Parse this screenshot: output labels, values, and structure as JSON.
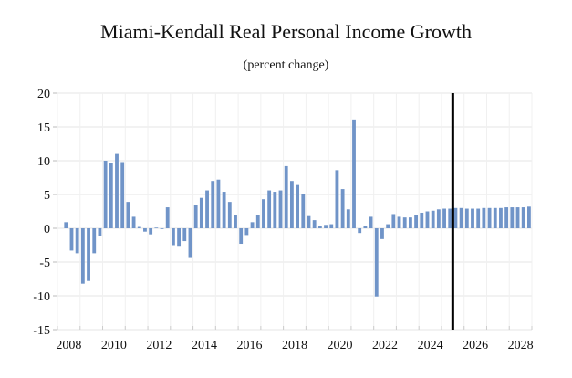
{
  "chart_data": {
    "type": "bar",
    "title": "Miami-Kendall Real Personal Income Growth",
    "subtitle": "(percent change)",
    "xlabel": "",
    "ylabel": "",
    "frequency": "quarterly",
    "start_period": "2008Q2",
    "end_period": "2028Q4",
    "ylim": [
      -15,
      20
    ],
    "yticks": [
      20,
      15,
      10,
      5,
      0,
      -5,
      -10,
      -15
    ],
    "xticks": [
      "2008",
      "2010",
      "2012",
      "2014",
      "2016",
      "2018",
      "2020",
      "2022",
      "2024",
      "2026",
      "2028"
    ],
    "xlim_years": [
      2008,
      2029
    ],
    "grid": true,
    "forecast_marker_year": 2025.5,
    "bar_color": "#7094c8",
    "marker_color": "#000000",
    "values": [
      0.9,
      -3.3,
      -3.7,
      -8.2,
      -7.8,
      -3.7,
      -1.1,
      10.0,
      9.7,
      11.0,
      9.8,
      3.9,
      1.7,
      0.2,
      -0.5,
      -0.9,
      0.1,
      -0.1,
      3.1,
      -2.5,
      -2.6,
      -1.9,
      -4.4,
      3.5,
      4.5,
      5.6,
      7.0,
      7.2,
      5.4,
      3.9,
      2.0,
      -2.3,
      -1.0,
      0.9,
      2.0,
      4.3,
      5.6,
      5.4,
      5.6,
      9.2,
      7.0,
      6.4,
      5.0,
      1.8,
      1.2,
      0.4,
      0.5,
      0.6,
      8.6,
      5.8,
      2.8,
      16.1,
      -0.7,
      0.4,
      1.7,
      -10.1,
      -1.6,
      0.6,
      2.1,
      1.7,
      1.6,
      1.6,
      1.9,
      2.3,
      2.5,
      2.6,
      2.8,
      2.9,
      2.9,
      3.0,
      3.0,
      2.9,
      2.9,
      2.9,
      3.0,
      3.0,
      3.0,
      3.0,
      3.1,
      3.1,
      3.1,
      3.1,
      3.2
    ]
  }
}
